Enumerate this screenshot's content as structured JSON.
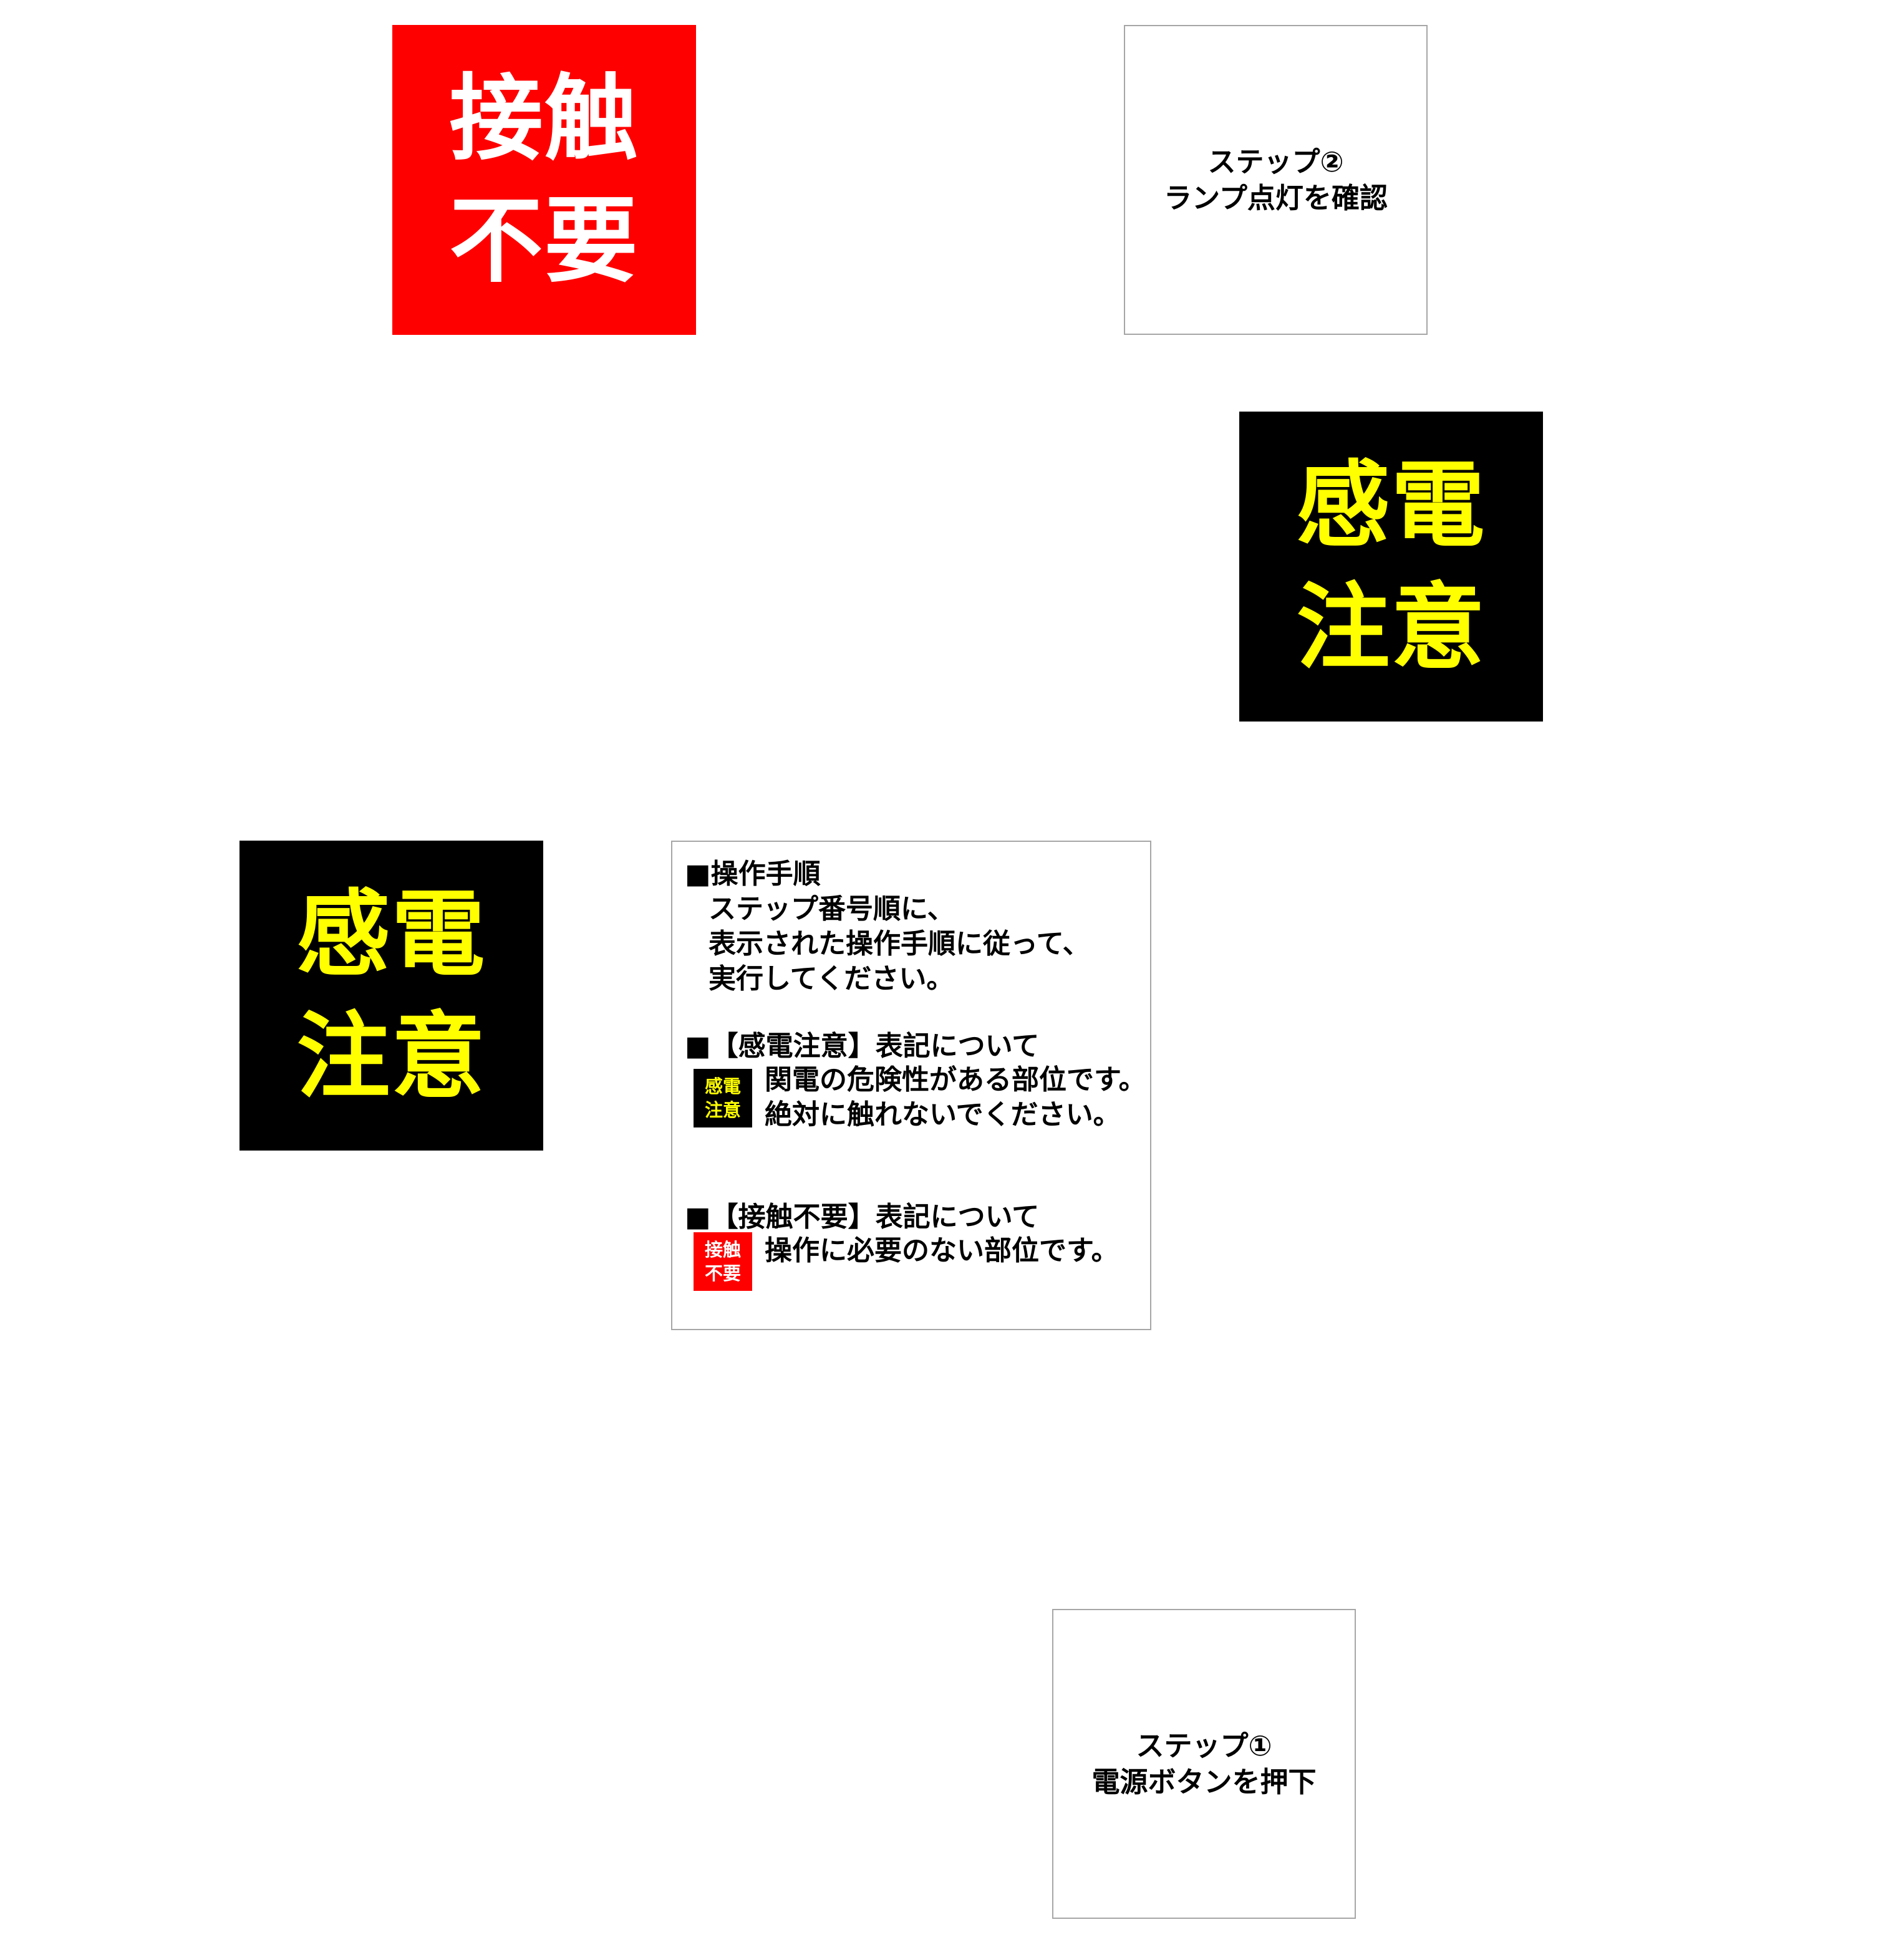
{
  "colors": {
    "contact_bg": "#ff0000",
    "contact_text": "#ffffff",
    "shock_bg": "#000000",
    "shock_text": "#ffff00",
    "box_border": "#a6a6a6"
  },
  "contact_sign": {
    "line1": "接触",
    "line2": "不要"
  },
  "shock_sign": {
    "line1": "感電",
    "line2": "注意"
  },
  "step2": {
    "line1": "ステップ②",
    "line2": "ランプ点灯を確認"
  },
  "step1": {
    "line1": "ステップ①",
    "line2": "電源ボタンを押下"
  },
  "guide": {
    "procedure_heading": "■操作手順",
    "procedure_lines": [
      "ステップ番号順に、",
      "表示された操作手順に従って、",
      "実行してください。"
    ],
    "shock_heading": "■【感電注意】表記について",
    "shock_icon": {
      "line1": "感電",
      "line2": "注意"
    },
    "shock_lines": [
      "関電の危険性がある部位です。",
      "絶対に触れないでください。"
    ],
    "contact_heading": "■【接触不要】表記について",
    "contact_icon": {
      "line1": "接触",
      "line2": "不要"
    },
    "contact_lines": [
      "操作に必要のない部位です。"
    ]
  }
}
